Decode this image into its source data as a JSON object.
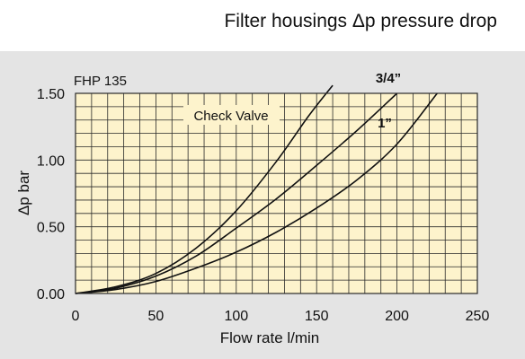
{
  "chart_data": {
    "type": "line",
    "title": "Filter housings Δp pressure drop",
    "subtitle": "FHP 135",
    "annotation": "Check Valve",
    "xlabel": "Flow rate l/min",
    "ylabel": "Δp bar",
    "xlim": [
      0,
      250
    ],
    "ylim": [
      0,
      1.5
    ],
    "x_ticks": [
      "0",
      "50",
      "100",
      "150",
      "200",
      "250"
    ],
    "y_ticks": [
      "0.00",
      "0.50",
      "1.00",
      "1.50"
    ],
    "grid": true,
    "x_minor_step": 10,
    "y_minor_step": 0.1,
    "series": [
      {
        "name": "",
        "x": [
          0,
          25,
          50,
          75,
          100,
          125,
          145,
          160
        ],
        "y": [
          0,
          0.05,
          0.15,
          0.34,
          0.62,
          0.99,
          1.33,
          1.56
        ]
      },
      {
        "name": "3/4”",
        "x": [
          0,
          25,
          50,
          75,
          100,
          125,
          150,
          175,
          200
        ],
        "y": [
          0,
          0.04,
          0.13,
          0.28,
          0.49,
          0.71,
          0.96,
          1.22,
          1.5
        ]
      },
      {
        "name": "1”",
        "x": [
          0,
          25,
          50,
          75,
          100,
          125,
          150,
          175,
          200,
          225
        ],
        "y": [
          0,
          0.03,
          0.09,
          0.19,
          0.31,
          0.46,
          0.64,
          0.85,
          1.12,
          1.5
        ]
      }
    ],
    "colors": {
      "plot_background": "#fdf3cc",
      "panel_background": "#e4e4e4",
      "grid": "#2a2a2a",
      "line": "#111111",
      "label_box": "#fdf3cc"
    }
  }
}
